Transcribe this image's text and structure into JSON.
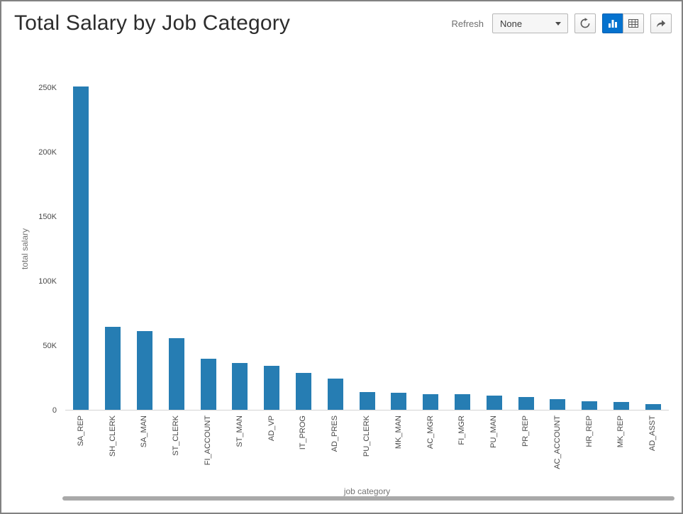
{
  "header": {
    "title": "Total Salary by Job Category",
    "refresh_label": "Refresh",
    "refresh_select_value": "None",
    "accent_color": "#0572ce",
    "icons": {
      "refresh_button": "circular-arrow",
      "chart_view_button": "bar-chart",
      "table_view_button": "data-grid",
      "share_button": "forward-arrow",
      "select_arrow": "triangle-down"
    }
  },
  "chart_data": {
    "type": "bar",
    "title": "Total Salary by Job Category",
    "xlabel": "job category",
    "ylabel": "total salary",
    "ylim": [
      0,
      250000
    ],
    "ytick_values": [
      0,
      50000,
      100000,
      150000,
      200000,
      250000
    ],
    "ytick_labels": [
      "0",
      "50K",
      "100K",
      "150K",
      "200K",
      "250K"
    ],
    "categories": [
      "SA_REP",
      "SH_CLERK",
      "SA_MAN",
      "ST_CLERK",
      "FI_ACCOUNT",
      "ST_MAN",
      "AD_VP",
      "IT_PROG",
      "AD_PRES",
      "PU_CLERK",
      "MK_MAN",
      "AC_MGR",
      "FI_MGR",
      "PU_MAN",
      "PR_REP",
      "AC_ACCOUNT",
      "HR_REP",
      "MK_REP",
      "AD_ASST"
    ],
    "values": [
      250500,
      64300,
      61000,
      55700,
      39600,
      36400,
      34000,
      28800,
      24000,
      13900,
      13000,
      12000,
      12000,
      11000,
      10000,
      8300,
      6500,
      6000,
      4400
    ],
    "bar_color": "#267db3",
    "grid": false,
    "legend": "none"
  }
}
